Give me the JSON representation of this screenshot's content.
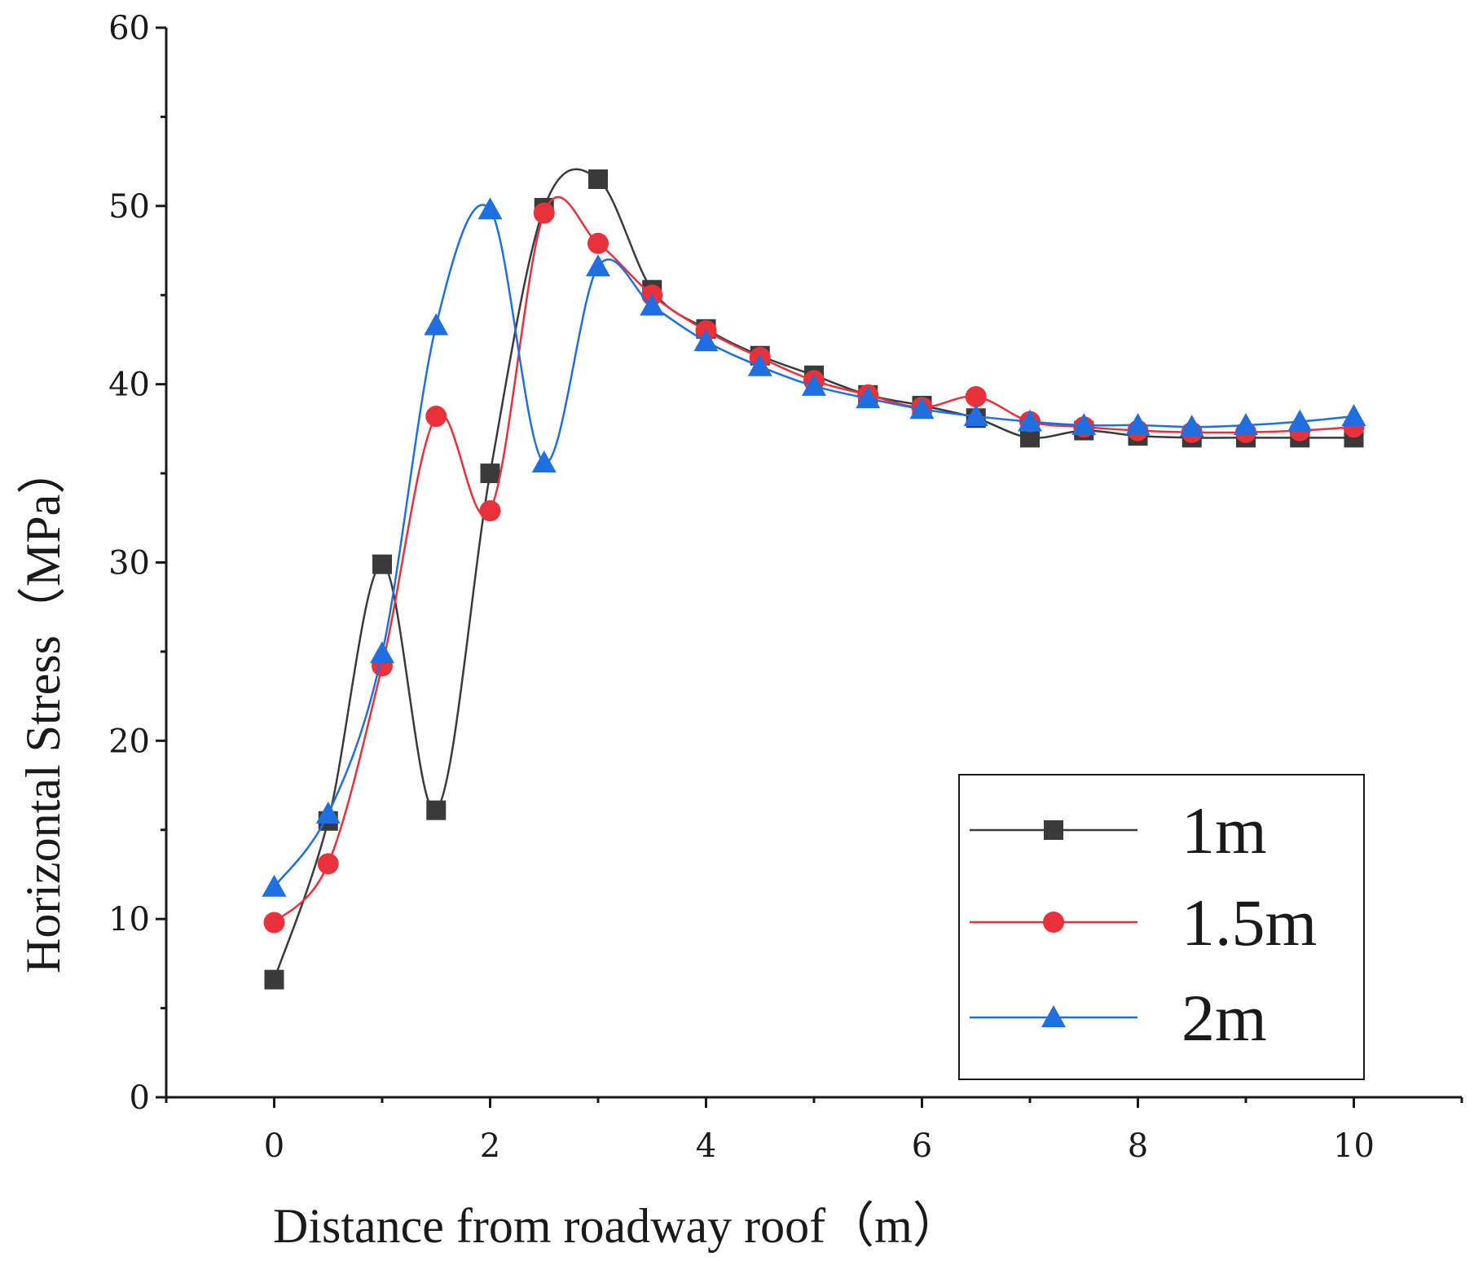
{
  "chart_data": {
    "type": "line",
    "xlabel": "Distance from roadway roof（m）",
    "ylabel": "Horizontal Stress（MPa）",
    "xlim": [
      -1,
      11
    ],
    "ylim": [
      0,
      60
    ],
    "xticks": [
      0,
      2,
      4,
      6,
      8,
      10
    ],
    "yticks": [
      0,
      10,
      20,
      30,
      40,
      50,
      60
    ],
    "x": [
      0,
      0.5,
      1,
      1.5,
      2,
      2.5,
      3,
      3.5,
      4,
      4.5,
      5,
      5.5,
      6,
      6.5,
      7,
      7.5,
      8,
      8.5,
      9,
      9.5,
      10
    ],
    "legend_position": "bottom-right",
    "grid": false,
    "series": [
      {
        "name": "1m",
        "color": "#3a3a3a",
        "marker": "square",
        "values": [
          6.6,
          15.5,
          29.9,
          16.1,
          35.0,
          49.9,
          51.5,
          45.3,
          43.1,
          41.6,
          40.5,
          39.4,
          38.8,
          38.1,
          37.0,
          37.4,
          37.1,
          37.0,
          37.0,
          37.0,
          37.0
        ]
      },
      {
        "name": "1.5m",
        "color": "#e8313a",
        "marker": "circle",
        "values": [
          9.8,
          13.1,
          24.2,
          38.2,
          32.9,
          49.6,
          47.9,
          45.0,
          43.0,
          41.5,
          40.2,
          39.4,
          38.7,
          39.3,
          37.9,
          37.6,
          37.4,
          37.3,
          37.3,
          37.4,
          37.6
        ]
      },
      {
        "name": "2m",
        "color": "#1f6fe0",
        "marker": "triangle",
        "values": [
          11.8,
          15.9,
          24.9,
          43.3,
          49.8,
          35.6,
          46.6,
          44.4,
          42.4,
          41.0,
          39.9,
          39.2,
          38.6,
          38.2,
          37.9,
          37.7,
          37.7,
          37.6,
          37.7,
          37.9,
          38.2
        ]
      }
    ]
  }
}
